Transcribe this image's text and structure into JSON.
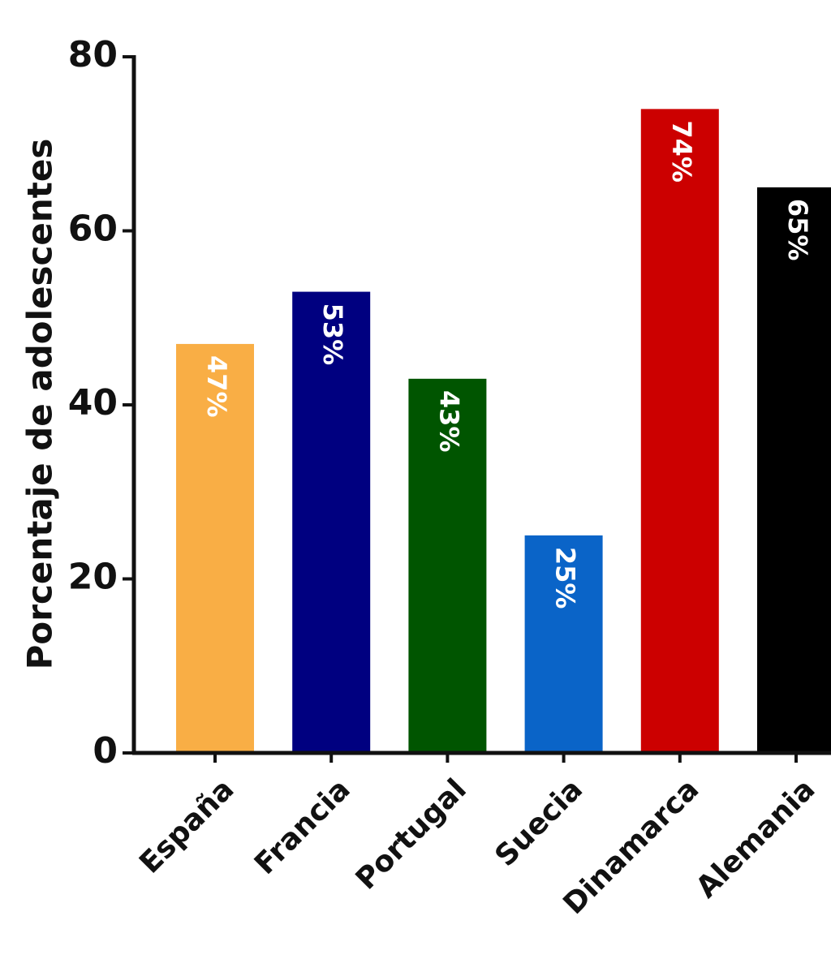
{
  "chart_data": {
    "type": "bar",
    "y_label": "Porcentaje de adolescentes",
    "categories": [
      "España",
      "Francia",
      "Portugal",
      "Suecia",
      "Dinamarca",
      "Alemania"
    ],
    "values": [
      47,
      53,
      43,
      25,
      74,
      65
    ],
    "value_labels": [
      "47%",
      "53%",
      "43%",
      "25%",
      "74%",
      "65%"
    ],
    "colors": [
      "#f9ae45",
      "#000080",
      "#005500",
      "#0a64c8",
      "#cc0000",
      "#000000"
    ],
    "ylim": [
      0,
      80
    ],
    "yticks": [
      0,
      20,
      40,
      60,
      80
    ],
    "grid": false
  }
}
